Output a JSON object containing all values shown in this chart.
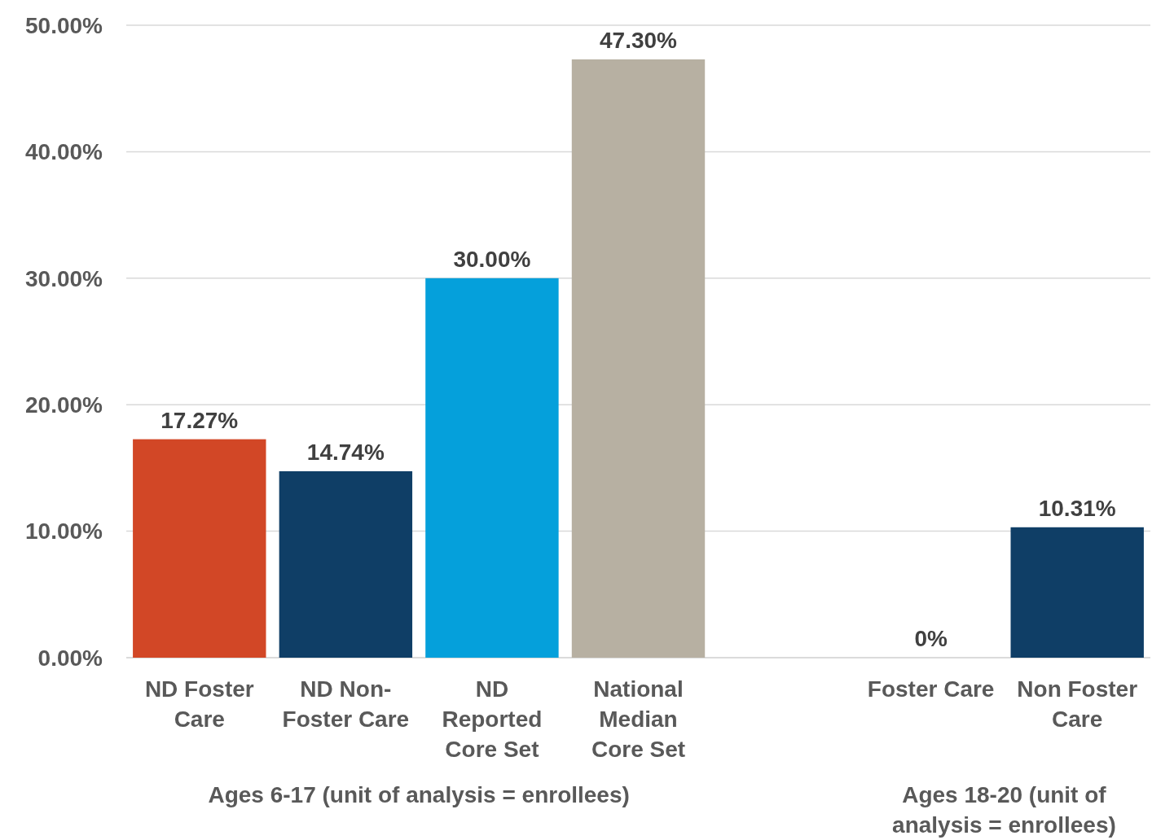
{
  "chart_data": {
    "type": "bar",
    "categories": [
      "ND Foster Care",
      "ND Non-Foster Care",
      "ND Reported Core Set",
      "National Median Core Set",
      null,
      "Foster Care",
      "Non Foster Care"
    ],
    "values": [
      17.27,
      14.74,
      30.0,
      47.3,
      null,
      0,
      10.31
    ],
    "colors": [
      "#d24726",
      "#0f3e66",
      "#05a0db",
      "#b7b0a2",
      null,
      "#0f3e66",
      "#0f3e66"
    ],
    "value_labels": [
      "17.27%",
      "14.74%",
      "30.00%",
      "47.30%",
      null,
      "0%",
      "10.31%"
    ],
    "ylim": [
      0,
      50
    ],
    "yticks": [
      {
        "value": 0,
        "label": "0.00%"
      },
      {
        "value": 10,
        "label": "10.00%"
      },
      {
        "value": 20,
        "label": "20.00%"
      },
      {
        "value": 30,
        "label": "30.00%"
      },
      {
        "value": 40,
        "label": "40.00%"
      },
      {
        "value": 50,
        "label": "50.00%"
      }
    ],
    "grid": "y",
    "annotations": [
      "Ages 6-17 (unit of analysis = enrollees)",
      "Ages 18-20 (unit of analysis = enrollees)"
    ]
  }
}
